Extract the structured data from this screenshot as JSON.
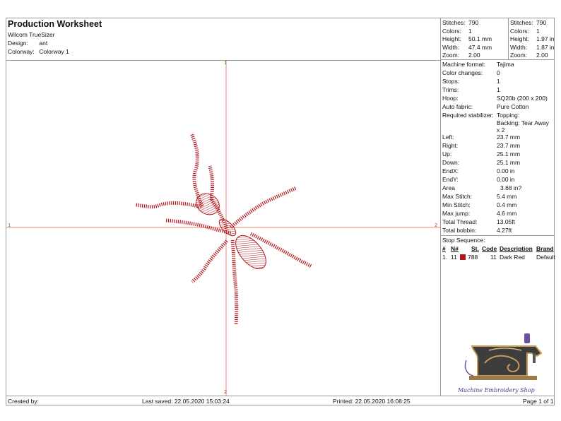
{
  "header": {
    "title": "Production Worksheet",
    "app": "Wilcom TrueSizer",
    "design_label": "Design:",
    "design_value": "ant",
    "colorway_label": "Colorway:",
    "colorway_value": "Colorway 1"
  },
  "stats_left": [
    {
      "k": "Stitches:",
      "v": "790"
    },
    {
      "k": "Colors:",
      "v": "1"
    },
    {
      "k": "Height:",
      "v": "50.1 mm"
    },
    {
      "k": "Width:",
      "v": "47.4 mm"
    },
    {
      "k": "Zoom:",
      "v": "2.00"
    }
  ],
  "stats_right": [
    {
      "k": "Stitches:",
      "v": "790"
    },
    {
      "k": "Colors:",
      "v": "1"
    },
    {
      "k": "Height:",
      "v": "1.97 in"
    },
    {
      "k": "Width:",
      "v": "1.87 in"
    },
    {
      "k": "Zoom:",
      "v": "2.00"
    }
  ],
  "info": [
    {
      "k": "Machine format:",
      "v": "Tajima"
    },
    {
      "k": "Color changes:",
      "v": "0"
    },
    {
      "k": "Stops:",
      "v": "1"
    },
    {
      "k": "Trims:",
      "v": "1"
    },
    {
      "k": "Hoop:",
      "v": "SQ20b (200 x 200)"
    },
    {
      "k": "Auto fabric:",
      "v": "Pure Cotton"
    },
    {
      "k": "Required stabilizer:",
      "v": "Topping:"
    },
    {
      "k": "",
      "v": "Backing: Tear Away"
    },
    {
      "k": "",
      "v": "x 2"
    },
    {
      "k": "Left:",
      "v": "23.7 mm"
    },
    {
      "k": "Right:",
      "v": "23.7 mm"
    },
    {
      "k": "Up:",
      "v": "25.1 mm"
    },
    {
      "k": "Down:",
      "v": "25.1 mm"
    },
    {
      "k": "EndX:",
      "v": "0.00 in"
    },
    {
      "k": "EndY:",
      "v": "0.00 in"
    },
    {
      "k": "Area",
      "v": "3.68 in?"
    },
    {
      "k": "Max Stitch:",
      "v": "5.4 mm"
    },
    {
      "k": "Min Stitch:",
      "v": "0.4 mm"
    },
    {
      "k": "Max jump:",
      "v": "4.6 mm"
    },
    {
      "k": "Total Thread:",
      "v": "13.05ft"
    },
    {
      "k": "Total bobbin:",
      "v": "4.27ft"
    }
  ],
  "sequence": {
    "title": "Stop Sequence:",
    "headers": [
      "#",
      "N#",
      "St.",
      "Code",
      "Description",
      "Brand"
    ],
    "rows": [
      {
        "num": "1.",
        "n": "11",
        "swatch": "#b3161b",
        "st": "788",
        "code": "11",
        "desc": "Dark Red",
        "brand": "Default"
      }
    ]
  },
  "axes": {
    "top": "1",
    "left": "1",
    "right": "2",
    "bottom": "2"
  },
  "logo": {
    "text": "Machine Embroidery Shop"
  },
  "footer": {
    "created": "Created by:",
    "saved": "Last saved: 22.05.2020 15:03:24",
    "printed": "Printed: 22.05.2020 16:08:25",
    "page": "Page 1 of 1"
  },
  "colors": {
    "thread": "#b3161b",
    "crosshair": "#e05a4a",
    "border": "#9a9a9a"
  }
}
